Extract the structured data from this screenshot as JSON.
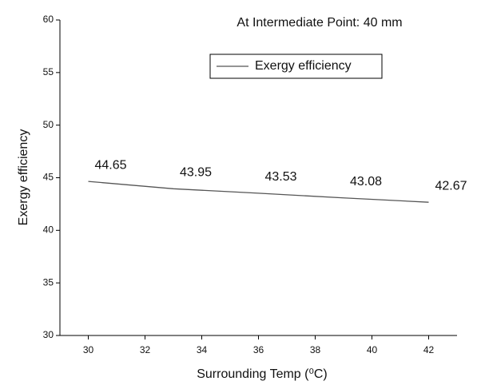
{
  "chart_data": {
    "type": "line",
    "title": "At Intermediate Point: 40 mm",
    "x_label": "Surrounding Temp (⁰C)",
    "y_label": "Exergy efficiency",
    "x": [
      30,
      33,
      36,
      39,
      42
    ],
    "series": [
      {
        "name": "Exergy efficiency",
        "color": "#555555",
        "values": [
          44.65,
          43.95,
          43.53,
          43.08,
          42.67
        ]
      }
    ],
    "xlim": [
      29,
      43
    ],
    "xticks": [
      30,
      32,
      34,
      36,
      38,
      40,
      42
    ],
    "ylim": [
      30,
      60
    ],
    "yticks": [
      30,
      35,
      40,
      45,
      50,
      55,
      60
    ],
    "grid": false,
    "legend": "top"
  }
}
